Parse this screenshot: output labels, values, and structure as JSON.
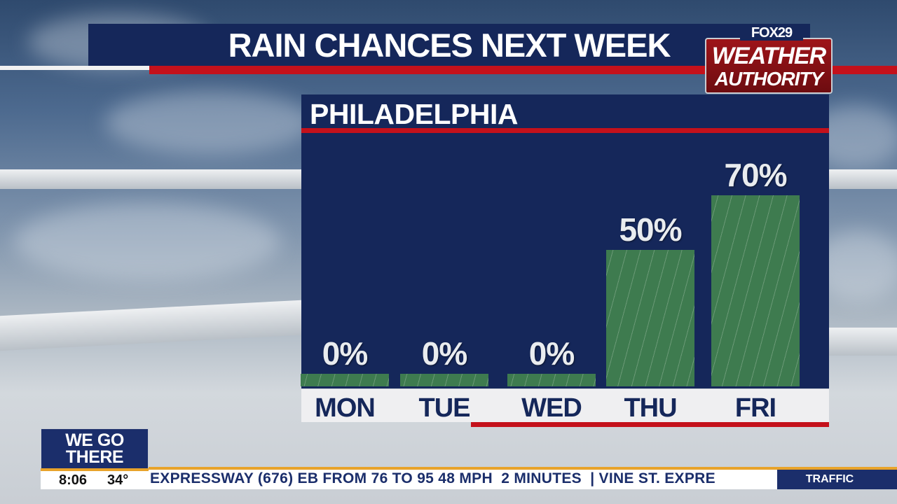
{
  "title": "RAIN CHANCES NEXT WEEK",
  "logo": {
    "brand": "FOX29",
    "line1": "WEATHER",
    "line2": "AUTHORITY"
  },
  "chart_data": {
    "type": "bar",
    "title": "PHILADELPHIA",
    "categories": [
      "MON",
      "TUE",
      "WED",
      "THU",
      "FRI"
    ],
    "values": [
      0,
      0,
      0,
      50,
      70
    ],
    "labels": [
      "0%",
      "0%",
      "0%",
      "50%",
      "70%"
    ],
    "ylim": [
      0,
      100
    ],
    "bar_color": "#3e7b4f",
    "panel_color": "#15275a",
    "accent_color": "#c4111b"
  },
  "lower_third": {
    "tag_line1": "WE GO",
    "tag_line2": "THERE",
    "time": "8:06",
    "temperature": "34°",
    "ticker": "EXPRESSWAY (676) EB FROM 76 TO 95 48 MPH  2 MINUTES  | VINE ST. EXPRE",
    "ticker_label": "TRAFFIC"
  }
}
